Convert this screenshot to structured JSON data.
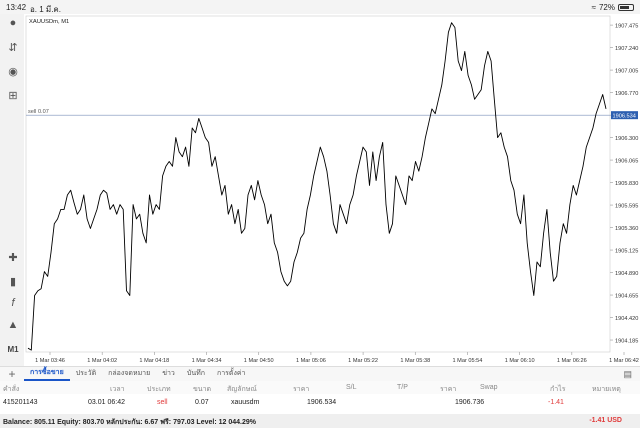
{
  "status": {
    "time": "13:42",
    "date": "อ. 1 มี.ค.",
    "battery": "72%",
    "battery_level": 0.72
  },
  "sidebar": {
    "timeframe": "M1"
  },
  "chart_data": {
    "type": "line",
    "symbol_label": "XAUUSDm, M1",
    "line_label": "sell 0.07",
    "line_value": 1906.534,
    "ylim": [
      1904.06,
      1907.57
    ],
    "y_ticks": [
      "1907.475",
      "1907.240",
      "1907.005",
      "1906.770",
      "1906.534",
      "1906.300",
      "1906.065",
      "1905.830",
      "1905.595",
      "1905.360",
      "1905.125",
      "1904.890",
      "1904.655",
      "1904.420",
      "1904.185"
    ],
    "x_ticks": [
      "1 Mar 03:46",
      "1 Mar 04:02",
      "1 Mar 04:18",
      "1 Mar 04:34",
      "1 Mar 04:50",
      "1 Mar 05:06",
      "1 Mar 05:22",
      "1 Mar 05:38",
      "1 Mar 05:54",
      "1 Mar 06:10",
      "1 Mar 06:26",
      "1 Mar 06:42"
    ],
    "values": [
      1904.1,
      1904.08,
      1904.65,
      1904.7,
      1904.72,
      1904.9,
      1904.85,
      1905.1,
      1905.4,
      1905.45,
      1905.55,
      1905.55,
      1905.7,
      1905.75,
      1905.62,
      1905.5,
      1905.55,
      1905.7,
      1905.45,
      1905.35,
      1905.45,
      1905.55,
      1905.7,
      1905.75,
      1905.72,
      1905.55,
      1905.6,
      1905.5,
      1905.6,
      1905.55,
      1904.7,
      1904.65,
      1905.6,
      1905.45,
      1905.5,
      1905.3,
      1905.2,
      1905.7,
      1905.5,
      1905.6,
      1905.55,
      1905.9,
      1906.0,
      1906.05,
      1906.0,
      1906.3,
      1906.15,
      1906.1,
      1906.2,
      1906.0,
      1906.4,
      1906.35,
      1906.5,
      1906.4,
      1906.3,
      1906.25,
      1906.0,
      1906.1,
      1905.9,
      1905.7,
      1905.8,
      1905.5,
      1905.6,
      1905.4,
      1905.55,
      1905.3,
      1905.35,
      1905.7,
      1905.8,
      1905.65,
      1905.85,
      1905.7,
      1905.6,
      1905.4,
      1905.5,
      1905.2,
      1905.1,
      1904.9,
      1904.8,
      1904.75,
      1904.8,
      1905.0,
      1905.1,
      1905.25,
      1905.3,
      1905.55,
      1905.7,
      1905.9,
      1906.05,
      1906.2,
      1906.1,
      1905.95,
      1905.7,
      1905.4,
      1905.3,
      1905.6,
      1905.5,
      1905.4,
      1905.6,
      1905.7,
      1905.9,
      1906.05,
      1906.2,
      1906.15,
      1905.8,
      1906.15,
      1905.85,
      1906.1,
      1906.25,
      1905.6,
      1905.3,
      1905.4,
      1905.9,
      1905.8,
      1905.7,
      1905.6,
      1905.9,
      1905.85,
      1906.05,
      1905.95,
      1906.1,
      1906.3,
      1906.45,
      1906.6,
      1906.55,
      1906.7,
      1906.85,
      1907.1,
      1907.4,
      1907.5,
      1907.45,
      1907.1,
      1907.0,
      1907.2,
      1906.95,
      1906.85,
      1906.7,
      1906.75,
      1906.8,
      1907.05,
      1907.2,
      1907.1,
      1906.7,
      1906.3,
      1906.35,
      1906.2,
      1906.1,
      1905.85,
      1905.75,
      1905.5,
      1905.4,
      1905.7,
      1905.2,
      1904.9,
      1904.65,
      1905.0,
      1904.95,
      1905.3,
      1905.55,
      1905.1,
      1904.8,
      1904.85,
      1905.2,
      1905.4,
      1905.3,
      1905.6,
      1905.8,
      1905.7,
      1905.85,
      1906.0,
      1906.2,
      1906.3,
      1906.4,
      1906.55,
      1906.65,
      1906.75,
      1906.6
    ]
  },
  "tabs": [
    "การซื้อขาย",
    "ประวัติ",
    "กล่องจดหมาย",
    "ข่าว",
    "บันทึก",
    "การตั้งค่า"
  ],
  "columns": [
    "คำสั่ง",
    "เวลา",
    "ประเภท",
    "ขนาด",
    "สัญลักษณ์",
    "ราคา",
    "S/L",
    "T/P",
    "ราคา",
    "Swap",
    "กำไร",
    "หมายเหตุ"
  ],
  "row": {
    "order": "415201143",
    "time": "03.01 06:42",
    "type": "sell",
    "size": "0.07",
    "symbol": "xauusdm",
    "open_price": "1906.534",
    "sl": "",
    "tp": "",
    "price": "1906.736",
    "swap": "",
    "profit": "-1.41",
    "comment": ""
  },
  "footer": {
    "summary": "Balance: 805.11 Equity: 803.70 หลักประกัน: 6.67 ฟรี: 797.03 Level: 12 044.29%",
    "pl": "-1.41  USD"
  }
}
